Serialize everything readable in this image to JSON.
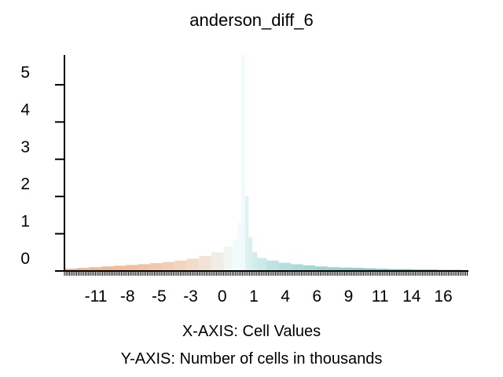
{
  "chart_data": {
    "type": "bar",
    "title": "anderson_diff_6",
    "xlabel": "X-AXIS: Cell Values",
    "ylabel": "Y-AXIS: Number of cells in thousands",
    "x_ticks": [
      "-11",
      "-8",
      "-5",
      "-3",
      "0",
      "1",
      "4",
      "6",
      "9",
      "11",
      "14",
      "16"
    ],
    "y_ticks": [
      "0",
      "1",
      "2",
      "3",
      "4",
      "5"
    ],
    "xlim": [
      -14,
      19
    ],
    "ylim": [
      0,
      5.8
    ],
    "grid": false,
    "legend": "none",
    "colors": {
      "negative": "#f0b48c",
      "center": "#f2fbfb",
      "positive": "#7ec6c4",
      "axis": "#000000"
    },
    "bins": {
      "x": [
        -13.5,
        -12.5,
        -11.5,
        -10.5,
        -9.5,
        -8.5,
        -7.5,
        -6.5,
        -5.5,
        -4.5,
        -3.5,
        -2.5,
        -1.5,
        -0.5,
        0.0,
        0.3,
        0.6,
        0.9,
        1.2,
        1.5,
        2.0,
        3.0,
        4.0,
        5.0,
        6.0,
        7.0,
        8.0,
        9.0,
        10.0,
        11.0,
        12.0,
        13.0,
        14.0,
        15.0,
        16.0,
        17.0,
        18.0
      ],
      "y": [
        0.06,
        0.08,
        0.1,
        0.12,
        0.14,
        0.16,
        0.18,
        0.21,
        0.24,
        0.28,
        0.33,
        0.4,
        0.5,
        0.65,
        0.85,
        1.3,
        5.85,
        2.0,
        0.9,
        0.5,
        0.35,
        0.28,
        0.22,
        0.18,
        0.15,
        0.12,
        0.1,
        0.09,
        0.08,
        0.07,
        0.06,
        0.05,
        0.05,
        0.04,
        0.04,
        0.03,
        0.03
      ]
    }
  }
}
